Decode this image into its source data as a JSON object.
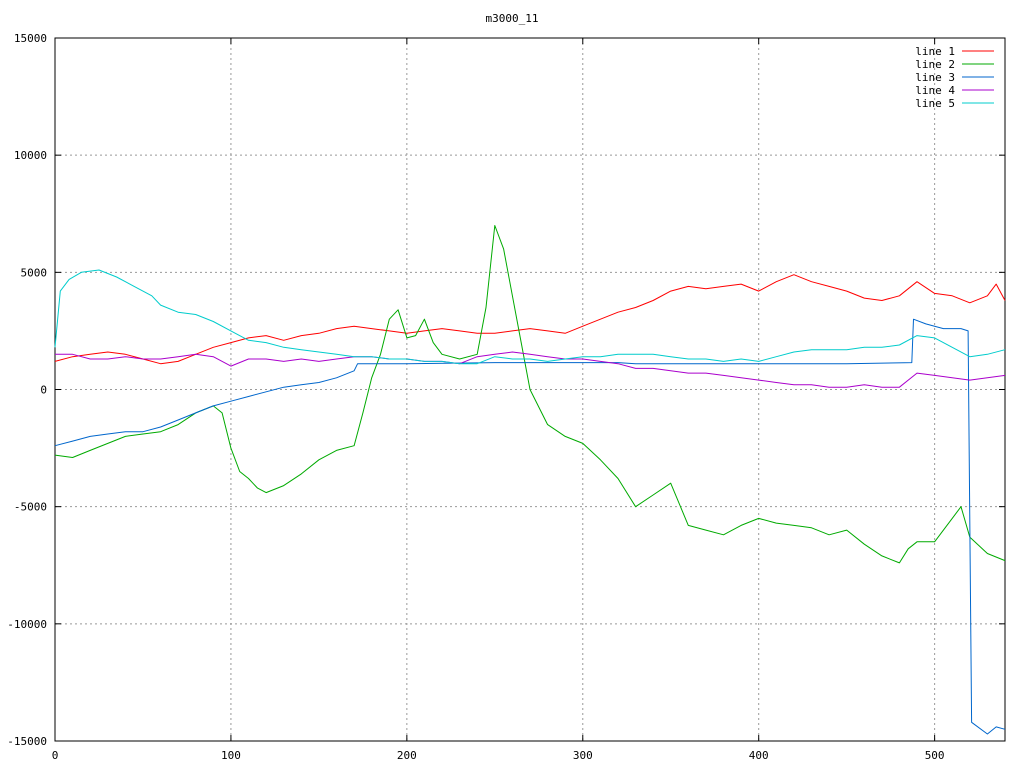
{
  "chart_data": {
    "type": "line",
    "title": "m3000_11",
    "xlabel": "",
    "ylabel": "",
    "xlim": [
      0,
      540
    ],
    "ylim": [
      -15000,
      15000
    ],
    "xticks": [
      0,
      100,
      200,
      300,
      400,
      500
    ],
    "yticks": [
      -15000,
      -10000,
      -5000,
      0,
      5000,
      10000,
      15000
    ],
    "grid": true,
    "legend_position": "top-right",
    "series": [
      {
        "name": "line 1",
        "color": "#ff0000",
        "points": [
          [
            0,
            1200
          ],
          [
            10,
            1400
          ],
          [
            20,
            1500
          ],
          [
            30,
            1600
          ],
          [
            40,
            1500
          ],
          [
            50,
            1300
          ],
          [
            60,
            1100
          ],
          [
            70,
            1200
          ],
          [
            80,
            1500
          ],
          [
            90,
            1800
          ],
          [
            100,
            2000
          ],
          [
            110,
            2200
          ],
          [
            120,
            2300
          ],
          [
            130,
            2100
          ],
          [
            140,
            2300
          ],
          [
            150,
            2400
          ],
          [
            160,
            2600
          ],
          [
            170,
            2700
          ],
          [
            180,
            2600
          ],
          [
            190,
            2500
          ],
          [
            200,
            2400
          ],
          [
            210,
            2500
          ],
          [
            220,
            2600
          ],
          [
            230,
            2500
          ],
          [
            240,
            2400
          ],
          [
            250,
            2400
          ],
          [
            260,
            2500
          ],
          [
            270,
            2600
          ],
          [
            280,
            2500
          ],
          [
            290,
            2400
          ],
          [
            300,
            2700
          ],
          [
            310,
            3000
          ],
          [
            320,
            3300
          ],
          [
            330,
            3500
          ],
          [
            340,
            3800
          ],
          [
            350,
            4200
          ],
          [
            360,
            4400
          ],
          [
            370,
            4300
          ],
          [
            380,
            4400
          ],
          [
            390,
            4500
          ],
          [
            400,
            4200
          ],
          [
            410,
            4600
          ],
          [
            420,
            4900
          ],
          [
            430,
            4600
          ],
          [
            440,
            4400
          ],
          [
            450,
            4200
          ],
          [
            460,
            3900
          ],
          [
            470,
            3800
          ],
          [
            480,
            4000
          ],
          [
            490,
            4600
          ],
          [
            500,
            4100
          ],
          [
            510,
            4000
          ],
          [
            520,
            3700
          ],
          [
            530,
            4000
          ],
          [
            535,
            4500
          ],
          [
            540,
            3800
          ]
        ]
      },
      {
        "name": "line 2",
        "color": "#00aa00",
        "points": [
          [
            0,
            -2800
          ],
          [
            10,
            -2900
          ],
          [
            20,
            -2600
          ],
          [
            30,
            -2300
          ],
          [
            40,
            -2000
          ],
          [
            50,
            -1900
          ],
          [
            60,
            -1800
          ],
          [
            70,
            -1500
          ],
          [
            80,
            -1000
          ],
          [
            90,
            -700
          ],
          [
            95,
            -1000
          ],
          [
            100,
            -2500
          ],
          [
            105,
            -3500
          ],
          [
            110,
            -3800
          ],
          [
            115,
            -4200
          ],
          [
            120,
            -4400
          ],
          [
            130,
            -4100
          ],
          [
            140,
            -3600
          ],
          [
            150,
            -3000
          ],
          [
            160,
            -2600
          ],
          [
            170,
            -2400
          ],
          [
            175,
            -1000
          ],
          [
            180,
            500
          ],
          [
            185,
            1500
          ],
          [
            190,
            3000
          ],
          [
            195,
            3400
          ],
          [
            200,
            2200
          ],
          [
            205,
            2300
          ],
          [
            210,
            3000
          ],
          [
            215,
            2000
          ],
          [
            220,
            1500
          ],
          [
            230,
            1300
          ],
          [
            240,
            1500
          ],
          [
            245,
            3500
          ],
          [
            250,
            7000
          ],
          [
            255,
            6000
          ],
          [
            260,
            4000
          ],
          [
            265,
            2000
          ],
          [
            270,
            0
          ],
          [
            280,
            -1500
          ],
          [
            290,
            -2000
          ],
          [
            300,
            -2300
          ],
          [
            310,
            -3000
          ],
          [
            320,
            -3800
          ],
          [
            330,
            -5000
          ],
          [
            340,
            -4500
          ],
          [
            350,
            -4000
          ],
          [
            360,
            -5800
          ],
          [
            370,
            -6000
          ],
          [
            380,
            -6200
          ],
          [
            390,
            -5800
          ],
          [
            400,
            -5500
          ],
          [
            410,
            -5700
          ],
          [
            420,
            -5800
          ],
          [
            430,
            -5900
          ],
          [
            440,
            -6200
          ],
          [
            450,
            -6000
          ],
          [
            460,
            -6600
          ],
          [
            470,
            -7100
          ],
          [
            480,
            -7400
          ],
          [
            485,
            -6800
          ],
          [
            490,
            -6500
          ],
          [
            500,
            -6500
          ],
          [
            510,
            -5500
          ],
          [
            515,
            -5000
          ],
          [
            520,
            -6300
          ],
          [
            530,
            -7000
          ],
          [
            540,
            -7300
          ]
        ]
      },
      {
        "name": "line 3",
        "color": "#0066cc",
        "points": [
          [
            0,
            -2400
          ],
          [
            10,
            -2200
          ],
          [
            20,
            -2000
          ],
          [
            30,
            -1900
          ],
          [
            40,
            -1800
          ],
          [
            50,
            -1800
          ],
          [
            60,
            -1600
          ],
          [
            70,
            -1300
          ],
          [
            80,
            -1000
          ],
          [
            90,
            -700
          ],
          [
            100,
            -500
          ],
          [
            110,
            -300
          ],
          [
            120,
            -100
          ],
          [
            130,
            100
          ],
          [
            140,
            200
          ],
          [
            150,
            300
          ],
          [
            160,
            500
          ],
          [
            170,
            800
          ],
          [
            172,
            1100
          ],
          [
            200,
            1100
          ],
          [
            250,
            1150
          ],
          [
            300,
            1150
          ],
          [
            320,
            1150
          ],
          [
            330,
            1100
          ],
          [
            400,
            1100
          ],
          [
            450,
            1100
          ],
          [
            487,
            1150
          ],
          [
            488,
            3000
          ],
          [
            495,
            2800
          ],
          [
            505,
            2600
          ],
          [
            515,
            2600
          ],
          [
            519,
            2500
          ],
          [
            521,
            -14200
          ],
          [
            530,
            -14700
          ],
          [
            535,
            -14400
          ],
          [
            540,
            -14500
          ]
        ]
      },
      {
        "name": "line 4",
        "color": "#aa00cc",
        "points": [
          [
            0,
            1500
          ],
          [
            10,
            1500
          ],
          [
            20,
            1300
          ],
          [
            30,
            1300
          ],
          [
            40,
            1400
          ],
          [
            50,
            1300
          ],
          [
            60,
            1300
          ],
          [
            70,
            1400
          ],
          [
            80,
            1500
          ],
          [
            90,
            1400
          ],
          [
            100,
            1000
          ],
          [
            110,
            1300
          ],
          [
            120,
            1300
          ],
          [
            130,
            1200
          ],
          [
            140,
            1300
          ],
          [
            150,
            1200
          ],
          [
            160,
            1300
          ],
          [
            170,
            1400
          ],
          [
            180,
            1400
          ],
          [
            190,
            1300
          ],
          [
            200,
            1300
          ],
          [
            210,
            1200
          ],
          [
            220,
            1200
          ],
          [
            230,
            1100
          ],
          [
            240,
            1400
          ],
          [
            250,
            1500
          ],
          [
            260,
            1600
          ],
          [
            270,
            1500
          ],
          [
            280,
            1400
          ],
          [
            290,
            1300
          ],
          [
            300,
            1300
          ],
          [
            310,
            1200
          ],
          [
            320,
            1100
          ],
          [
            330,
            900
          ],
          [
            340,
            900
          ],
          [
            350,
            800
          ],
          [
            360,
            700
          ],
          [
            370,
            700
          ],
          [
            380,
            600
          ],
          [
            390,
            500
          ],
          [
            400,
            400
          ],
          [
            410,
            300
          ],
          [
            420,
            200
          ],
          [
            430,
            200
          ],
          [
            440,
            100
          ],
          [
            450,
            100
          ],
          [
            460,
            200
          ],
          [
            470,
            100
          ],
          [
            480,
            100
          ],
          [
            490,
            700
          ],
          [
            500,
            600
          ],
          [
            510,
            500
          ],
          [
            520,
            400
          ],
          [
            530,
            500
          ],
          [
            540,
            600
          ]
        ]
      },
      {
        "name": "line 5",
        "color": "#00cccc",
        "points": [
          [
            0,
            1800
          ],
          [
            3,
            4200
          ],
          [
            8,
            4700
          ],
          [
            15,
            5000
          ],
          [
            25,
            5100
          ],
          [
            35,
            4800
          ],
          [
            45,
            4400
          ],
          [
            55,
            4000
          ],
          [
            60,
            3600
          ],
          [
            70,
            3300
          ],
          [
            80,
            3200
          ],
          [
            90,
            2900
          ],
          [
            100,
            2500
          ],
          [
            110,
            2100
          ],
          [
            120,
            2000
          ],
          [
            130,
            1800
          ],
          [
            140,
            1700
          ],
          [
            150,
            1600
          ],
          [
            160,
            1500
          ],
          [
            170,
            1400
          ],
          [
            180,
            1400
          ],
          [
            190,
            1300
          ],
          [
            200,
            1300
          ],
          [
            210,
            1200
          ],
          [
            220,
            1200
          ],
          [
            230,
            1100
          ],
          [
            240,
            1100
          ],
          [
            250,
            1400
          ],
          [
            260,
            1300
          ],
          [
            270,
            1300
          ],
          [
            280,
            1200
          ],
          [
            290,
            1300
          ],
          [
            300,
            1400
          ],
          [
            310,
            1400
          ],
          [
            320,
            1500
          ],
          [
            330,
            1500
          ],
          [
            340,
            1500
          ],
          [
            350,
            1400
          ],
          [
            360,
            1300
          ],
          [
            370,
            1300
          ],
          [
            380,
            1200
          ],
          [
            390,
            1300
          ],
          [
            400,
            1200
          ],
          [
            410,
            1400
          ],
          [
            420,
            1600
          ],
          [
            430,
            1700
          ],
          [
            440,
            1700
          ],
          [
            450,
            1700
          ],
          [
            460,
            1800
          ],
          [
            470,
            1800
          ],
          [
            480,
            1900
          ],
          [
            490,
            2300
          ],
          [
            500,
            2200
          ],
          [
            510,
            1800
          ],
          [
            520,
            1400
          ],
          [
            530,
            1500
          ],
          [
            540,
            1700
          ]
        ]
      }
    ]
  }
}
